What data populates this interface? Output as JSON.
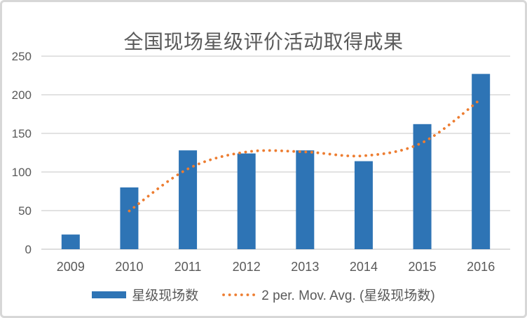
{
  "window": {
    "background_color": "#FFFFFF",
    "border_color": "#D7D7D7"
  },
  "chart_data": {
    "type": "bar",
    "title": "全国现场星级评价活动取得成果",
    "categories": [
      "2009",
      "2010",
      "2011",
      "2012",
      "2013",
      "2014",
      "2015",
      "2016"
    ],
    "series": [
      {
        "name": "星级现场数",
        "type": "bar",
        "color": "#2E74B5",
        "values": [
          19,
          80,
          128,
          124,
          128,
          114,
          162,
          227
        ]
      },
      {
        "name": "2 per. Mov. Avg. (星级现场数)",
        "type": "moving_average",
        "period": 2,
        "color": "#ED7D31",
        "line_style": "dotted",
        "values": [
          null,
          49.5,
          104,
          126,
          126,
          121,
          138,
          194.5
        ]
      }
    ],
    "xlabel": "",
    "ylabel": "",
    "ylim": [
      0,
      250
    ],
    "yticks": [
      0,
      50,
      100,
      150,
      200,
      250
    ],
    "grid": "horizontal",
    "gridline_color": "#D9D9D9",
    "axis_line_color": "#D2D2D2",
    "tick_label_color": "#595959",
    "legend_position": "bottom"
  }
}
